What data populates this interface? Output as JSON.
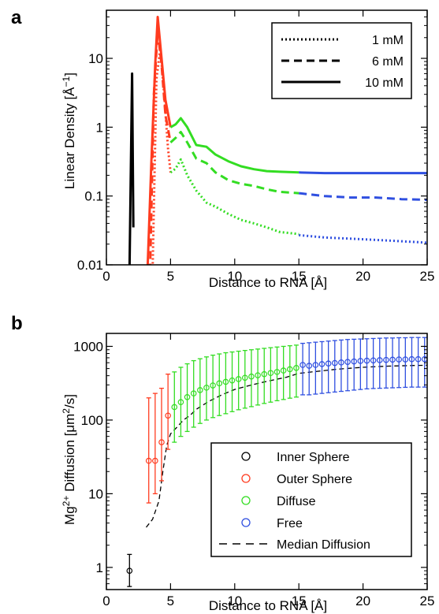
{
  "chart_data": [
    {
      "panel_label": "a",
      "type": "line",
      "xlabel": "Distance to RNA [Å]",
      "ylabel": "Linear Density [Å",
      "ylabel_sup": "−1",
      "ylabel_end": "]",
      "xlim": [
        0,
        25
      ],
      "ylim": [
        0.01,
        50
      ],
      "yscale": "log",
      "grid": false,
      "legend_position": "top-right",
      "x_ticks": [
        "0",
        "5",
        "10",
        "15",
        "20",
        "25"
      ],
      "y_ticks": [
        "0.01",
        "0.1",
        "1",
        "10"
      ],
      "legend": [
        {
          "label": "1 mM",
          "style": "dotted"
        },
        {
          "label": "6 mM",
          "style": "dashed"
        },
        {
          "label": "10 mM",
          "style": "solid"
        }
      ],
      "region_colors": {
        "inner": "#000000",
        "outer": "#ff3b1f",
        "diffuse": "#33dd22",
        "free": "#2f4fe0"
      },
      "series": [
        {
          "concentration": "10 mM",
          "style": "solid",
          "inner": [
            [
              1.8,
              0.008
            ],
            [
              2.0,
              6
            ],
            [
              2.1,
              0.035
            ]
          ],
          "outer": [
            [
              3.2,
              0.008
            ],
            [
              3.5,
              0.3
            ],
            [
              3.8,
              8
            ],
            [
              4.0,
              40
            ],
            [
              4.3,
              10
            ],
            [
              4.6,
              2.5
            ],
            [
              5.0,
              1.0
            ]
          ],
          "diffuse": [
            [
              5.0,
              1.0
            ],
            [
              5.4,
              1.1
            ],
            [
              5.8,
              1.35
            ],
            [
              6.3,
              1.0
            ],
            [
              7.0,
              0.55
            ],
            [
              7.8,
              0.52
            ],
            [
              8.5,
              0.4
            ],
            [
              9.5,
              0.32
            ],
            [
              10.5,
              0.27
            ],
            [
              11.5,
              0.245
            ],
            [
              12.5,
              0.23
            ],
            [
              13.5,
              0.225
            ],
            [
              15.0,
              0.22
            ]
          ],
          "free": [
            [
              15.0,
              0.22
            ],
            [
              17.0,
              0.215
            ],
            [
              19.0,
              0.215
            ],
            [
              21.0,
              0.215
            ],
            [
              23.0,
              0.215
            ],
            [
              25.0,
              0.215
            ]
          ]
        },
        {
          "concentration": "6 mM",
          "style": "dashed",
          "inner": [],
          "outer": [
            [
              3.4,
              0.008
            ],
            [
              3.7,
              3
            ],
            [
              4.0,
              25
            ],
            [
              4.3,
              8
            ],
            [
              4.6,
              1.5
            ],
            [
              5.0,
              0.6
            ]
          ],
          "diffuse": [
            [
              5.0,
              0.6
            ],
            [
              5.4,
              0.7
            ],
            [
              5.8,
              0.85
            ],
            [
              6.3,
              0.6
            ],
            [
              7.0,
              0.35
            ],
            [
              7.8,
              0.3
            ],
            [
              8.5,
              0.22
            ],
            [
              9.5,
              0.17
            ],
            [
              10.5,
              0.15
            ],
            [
              11.5,
              0.14
            ],
            [
              12.5,
              0.125
            ],
            [
              13.5,
              0.115
            ],
            [
              15.0,
              0.11
            ]
          ],
          "free": [
            [
              15.0,
              0.11
            ],
            [
              17.0,
              0.1
            ],
            [
              19.0,
              0.095
            ],
            [
              21.0,
              0.095
            ],
            [
              23.0,
              0.09
            ],
            [
              25.0,
              0.088
            ]
          ]
        },
        {
          "concentration": "1 mM",
          "style": "dotted",
          "inner": [],
          "outer": [
            [
              3.6,
              0.008
            ],
            [
              3.9,
              5
            ],
            [
              4.2,
              14
            ],
            [
              4.5,
              3
            ],
            [
              4.8,
              0.5
            ],
            [
              5.0,
              0.22
            ]
          ],
          "diffuse": [
            [
              5.0,
              0.22
            ],
            [
              5.4,
              0.25
            ],
            [
              5.8,
              0.34
            ],
            [
              6.3,
              0.2
            ],
            [
              7.0,
              0.12
            ],
            [
              7.8,
              0.08
            ],
            [
              8.5,
              0.07
            ],
            [
              9.5,
              0.055
            ],
            [
              10.5,
              0.045
            ],
            [
              11.5,
              0.04
            ],
            [
              12.5,
              0.035
            ],
            [
              13.5,
              0.03
            ],
            [
              15.0,
              0.028
            ]
          ],
          "free": [
            [
              15.0,
              0.027
            ],
            [
              17.0,
              0.025
            ],
            [
              19.0,
              0.024
            ],
            [
              21.0,
              0.023
            ],
            [
              23.0,
              0.022
            ],
            [
              25.0,
              0.021
            ]
          ]
        }
      ]
    },
    {
      "panel_label": "b",
      "type": "scatter",
      "xlabel": "Distance to RNA [Å]",
      "ylabel_pre": "Mg",
      "ylabel_sup": "2+",
      "ylabel_mid": " Diffusion [μm",
      "ylabel_sup2": "2",
      "ylabel_end": "/s]",
      "xlim": [
        0,
        25
      ],
      "ylim": [
        0.5,
        1500
      ],
      "yscale": "log",
      "grid": false,
      "legend_position": "bottom-right",
      "x_ticks": [
        "0",
        "5",
        "10",
        "15",
        "20",
        "25"
      ],
      "y_ticks": [
        "1",
        "10",
        "100",
        "1000"
      ],
      "legend": [
        {
          "label": "Inner Sphere",
          "color": "#000000",
          "marker": "circle"
        },
        {
          "label": "Outer Sphere",
          "color": "#ff3b1f",
          "marker": "circle"
        },
        {
          "label": "Diffuse",
          "color": "#33dd22",
          "marker": "circle"
        },
        {
          "label": "Free",
          "color": "#2f4fe0",
          "marker": "circle"
        },
        {
          "label": "Median Diffusion",
          "color": "#000000",
          "marker": "dashed-line"
        }
      ],
      "series": [
        {
          "name": "Inner Sphere",
          "color": "#000000",
          "points": [
            {
              "x": 1.8,
              "y": 0.9,
              "lo": 0.55,
              "hi": 1.5
            }
          ]
        },
        {
          "name": "Outer Sphere",
          "color": "#ff3b1f",
          "points": [
            {
              "x": 3.3,
              "y": 28,
              "lo": 7.5,
              "hi": 200
            },
            {
              "x": 3.8,
              "y": 28,
              "lo": 10,
              "hi": 230
            },
            {
              "x": 4.3,
              "y": 50,
              "lo": 15,
              "hi": 270
            },
            {
              "x": 4.8,
              "y": 115,
              "lo": 40,
              "hi": 420
            }
          ]
        },
        {
          "name": "Diffuse",
          "color": "#33dd22",
          "points": [
            {
              "x": 5.3,
              "y": 150,
              "lo": 50,
              "hi": 450
            },
            {
              "x": 5.8,
              "y": 175,
              "lo": 60,
              "hi": 520
            },
            {
              "x": 6.3,
              "y": 205,
              "lo": 70,
              "hi": 580
            },
            {
              "x": 6.8,
              "y": 230,
              "lo": 80,
              "hi": 640
            },
            {
              "x": 7.3,
              "y": 255,
              "lo": 90,
              "hi": 680
            },
            {
              "x": 7.8,
              "y": 275,
              "lo": 100,
              "hi": 720
            },
            {
              "x": 8.3,
              "y": 295,
              "lo": 108,
              "hi": 760
            },
            {
              "x": 8.8,
              "y": 315,
              "lo": 115,
              "hi": 790
            },
            {
              "x": 9.3,
              "y": 330,
              "lo": 122,
              "hi": 820
            },
            {
              "x": 9.8,
              "y": 345,
              "lo": 130,
              "hi": 840
            },
            {
              "x": 10.3,
              "y": 360,
              "lo": 138,
              "hi": 860
            },
            {
              "x": 10.8,
              "y": 375,
              "lo": 145,
              "hi": 880
            },
            {
              "x": 11.3,
              "y": 390,
              "lo": 152,
              "hi": 900
            },
            {
              "x": 11.8,
              "y": 405,
              "lo": 160,
              "hi": 920
            },
            {
              "x": 12.3,
              "y": 420,
              "lo": 168,
              "hi": 940
            },
            {
              "x": 12.8,
              "y": 435,
              "lo": 175,
              "hi": 960
            },
            {
              "x": 13.3,
              "y": 450,
              "lo": 183,
              "hi": 980
            },
            {
              "x": 13.8,
              "y": 470,
              "lo": 190,
              "hi": 1000
            },
            {
              "x": 14.3,
              "y": 490,
              "lo": 198,
              "hi": 1020
            },
            {
              "x": 14.8,
              "y": 510,
              "lo": 205,
              "hi": 1040
            }
          ]
        },
        {
          "name": "Free",
          "color": "#2f4fe0",
          "points": [
            {
              "x": 15.3,
              "y": 560,
              "lo": 220,
              "hi": 1100
            },
            {
              "x": 15.8,
              "y": 545,
              "lo": 220,
              "hi": 1120
            },
            {
              "x": 16.3,
              "y": 560,
              "lo": 225,
              "hi": 1140
            },
            {
              "x": 16.8,
              "y": 575,
              "lo": 230,
              "hi": 1160
            },
            {
              "x": 17.3,
              "y": 585,
              "lo": 235,
              "hi": 1180
            },
            {
              "x": 17.8,
              "y": 595,
              "lo": 240,
              "hi": 1200
            },
            {
              "x": 18.3,
              "y": 605,
              "lo": 245,
              "hi": 1220
            },
            {
              "x": 18.8,
              "y": 615,
              "lo": 250,
              "hi": 1240
            },
            {
              "x": 19.3,
              "y": 625,
              "lo": 255,
              "hi": 1250
            },
            {
              "x": 19.8,
              "y": 635,
              "lo": 260,
              "hi": 1260
            },
            {
              "x": 20.3,
              "y": 640,
              "lo": 265,
              "hi": 1270
            },
            {
              "x": 20.8,
              "y": 645,
              "lo": 268,
              "hi": 1280
            },
            {
              "x": 21.3,
              "y": 650,
              "lo": 270,
              "hi": 1290
            },
            {
              "x": 21.8,
              "y": 655,
              "lo": 272,
              "hi": 1300
            },
            {
              "x": 22.3,
              "y": 660,
              "lo": 274,
              "hi": 1300
            },
            {
              "x": 22.8,
              "y": 665,
              "lo": 276,
              "hi": 1310
            },
            {
              "x": 23.3,
              "y": 665,
              "lo": 278,
              "hi": 1310
            },
            {
              "x": 23.8,
              "y": 670,
              "lo": 280,
              "hi": 1320
            },
            {
              "x": 24.3,
              "y": 670,
              "lo": 280,
              "hi": 1320
            },
            {
              "x": 24.8,
              "y": 670,
              "lo": 280,
              "hi": 1320
            }
          ]
        }
      ],
      "median_diffusion": [
        [
          3.1,
          3.5
        ],
        [
          3.6,
          4.5
        ],
        [
          4.1,
          8
        ],
        [
          4.4,
          20
        ],
        [
          4.7,
          45
        ],
        [
          5.0,
          65
        ],
        [
          5.5,
          80
        ],
        [
          6.0,
          100
        ],
        [
          6.5,
          115
        ],
        [
          7.0,
          140
        ],
        [
          8.0,
          180
        ],
        [
          9.0,
          220
        ],
        [
          10.0,
          260
        ],
        [
          11.0,
          290
        ],
        [
          12.0,
          320
        ],
        [
          13.0,
          350
        ],
        [
          14.0,
          380
        ],
        [
          15.0,
          430
        ],
        [
          16.0,
          450
        ],
        [
          17.0,
          470
        ],
        [
          18.0,
          490
        ],
        [
          19.0,
          505
        ],
        [
          20.0,
          520
        ],
        [
          21.0,
          530
        ],
        [
          22.0,
          540
        ],
        [
          23.0,
          545
        ],
        [
          24.0,
          550
        ],
        [
          25.0,
          555
        ]
      ]
    }
  ]
}
